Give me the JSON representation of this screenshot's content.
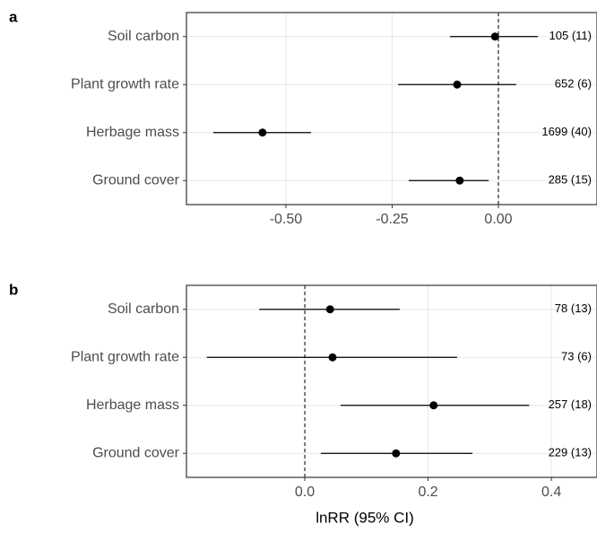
{
  "chart_data": [
    {
      "type": "forest",
      "title": "a",
      "categories": [
        "Soil carbon",
        "Plant growth rate",
        "Herbage mass",
        "Ground cover"
      ],
      "values": [
        -0.008,
        -0.097,
        -0.555,
        -0.091
      ],
      "lower": [
        -0.114,
        -0.236,
        -0.671,
        -0.211
      ],
      "upper": [
        0.093,
        0.042,
        -0.441,
        -0.023
      ],
      "annotations": [
        "105 (11)",
        "652 (6)",
        "1699 (40)",
        "285 (15)"
      ],
      "xlim": [
        -0.734,
        0.232
      ],
      "xticks": [
        {
          "value": -0.5,
          "label": "-0.50"
        },
        {
          "value": -0.25,
          "label": "-0.25"
        },
        {
          "value": 0,
          "label": "0.00"
        }
      ],
      "reference_line": 0,
      "grid": true,
      "color": "#000000"
    },
    {
      "type": "forest",
      "title": "b",
      "categories": [
        "Soil carbon",
        "Plant growth rate",
        "Herbage mass",
        "Ground cover"
      ],
      "values": [
        0.041,
        0.045,
        0.209,
        0.148
      ],
      "lower": [
        -0.074,
        -0.159,
        0.058,
        0.026
      ],
      "upper": [
        0.154,
        0.247,
        0.364,
        0.272
      ],
      "annotations": [
        "78 (13)",
        "73 (6)",
        "257 (18)",
        "229 (13)"
      ],
      "xlim": [
        -0.192,
        0.474
      ],
      "xticks": [
        {
          "value": 0,
          "label": "0.0"
        },
        {
          "value": 0.2,
          "label": "0.2"
        },
        {
          "value": 0.4,
          "label": "0.4"
        }
      ],
      "reference_line": 0,
      "grid": true,
      "color": "#000000",
      "xlabel": "lnRR (95% CI)"
    }
  ]
}
